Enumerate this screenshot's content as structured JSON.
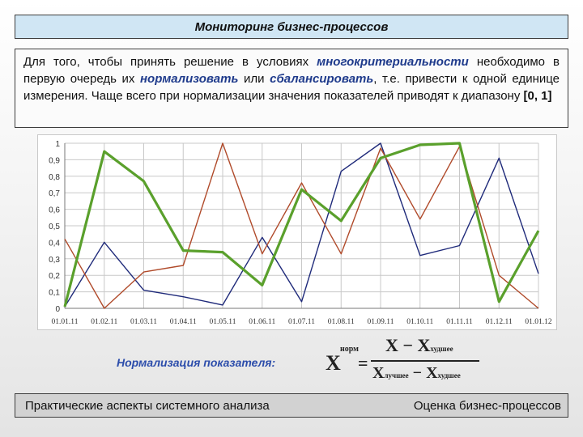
{
  "title": "Мониторинг бизнес-процессов",
  "intro": {
    "p1": "Для того, чтобы принять решение в условиях ",
    "t1": "многокритериальности",
    "p2": " необходимо в первую очередь их ",
    "t2": "нормализовать",
    "p3": " или ",
    "t3": "сбалансировать",
    "p4": ", т.е. привести к одной единице измерения. Чаще всего при нормализации значения показателей приводят к диапазону ",
    "t4": "[0, 1]"
  },
  "chart_data": {
    "type": "line",
    "categories": [
      "01.01.11",
      "01.02.11",
      "01.03.11",
      "01.04.11",
      "01.05.11",
      "01.06.11",
      "01.07.11",
      "01.08.11",
      "01.09.11",
      "01.10.11",
      "01.11.11",
      "01.12.11",
      "01.01.12"
    ],
    "ylim": [
      0,
      1
    ],
    "yticks": [
      "0",
      "0,1",
      "0,2",
      "0,3",
      "0,4",
      "0,5",
      "0,6",
      "0,7",
      "0,8",
      "0,9",
      "1"
    ],
    "grid": true,
    "series": [
      {
        "color": "#1f2a7a",
        "values": [
          0.01,
          0.4,
          0.11,
          0.07,
          0.02,
          0.43,
          0.04,
          0.83,
          1.0,
          0.32,
          0.38,
          0.91,
          0.21
        ]
      },
      {
        "color": "#b04a2a",
        "values": [
          0.42,
          0.0,
          0.22,
          0.26,
          1.0,
          0.33,
          0.76,
          0.33,
          0.97,
          0.54,
          0.98,
          0.2,
          0.0
        ]
      },
      {
        "color": "#5aa02c",
        "values": [
          0.01,
          0.95,
          0.77,
          0.35,
          0.34,
          0.14,
          0.72,
          0.53,
          0.91,
          0.99,
          1.0,
          0.04,
          0.47
        ]
      }
    ]
  },
  "formula": {
    "label": "Нормализация показателя:",
    "x": "X",
    "sup": "норм",
    "eq": "=",
    "num_x": "X",
    "num_minus": " − ",
    "num_xw": "X",
    "num_xw_sub": "худшее",
    "den_xb": "X",
    "den_xb_sub": "лучшее",
    "den_minus": " − ",
    "den_xw": "X",
    "den_xw_sub": "худшее"
  },
  "footer": {
    "left": "Практические аспекты системного анализа",
    "right": "Оценка бизнес-процессов"
  }
}
